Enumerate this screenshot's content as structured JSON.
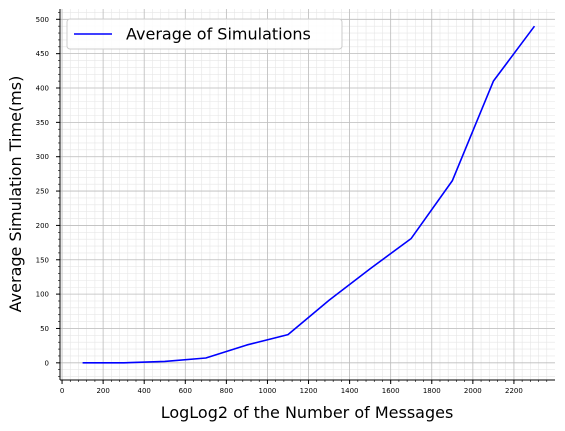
{
  "chart_data": {
    "type": "line",
    "title": "",
    "xlabel": "LogLog2 of the Number of Messages",
    "ylabel": "Average Simulation Time(ms)",
    "xlim": [
      -10,
      2400
    ],
    "ylim": [
      -25,
      515
    ],
    "x_ticks": [
      0,
      200,
      400,
      600,
      800,
      1000,
      1200,
      1400,
      1600,
      1800,
      2000,
      2200
    ],
    "y_ticks": [
      0,
      50,
      100,
      150,
      200,
      250,
      300,
      350,
      400,
      450,
      500
    ],
    "grid": true,
    "legend_position": "top-left",
    "series": [
      {
        "name": "Average of Simulations",
        "color": "#0000ff",
        "x": [
          100,
          300,
          500,
          700,
          900,
          1100,
          1300,
          1500,
          1700,
          1900,
          2100,
          2300
        ],
        "y": [
          0,
          0,
          2,
          7,
          26,
          41,
          91,
          137,
          181,
          265,
          410,
          490
        ]
      }
    ]
  }
}
